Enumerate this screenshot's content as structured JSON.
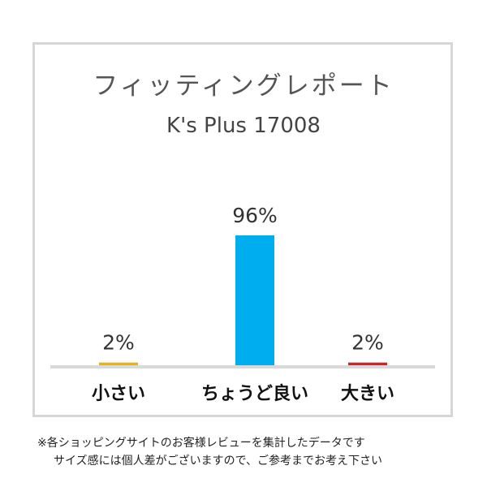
{
  "chart_data": {
    "type": "bar",
    "title": "フィッティングレポート",
    "subtitle": "K's Plus 17008",
    "categories": [
      "小さい",
      "ちょうど良い",
      "大きい"
    ],
    "values": [
      2,
      96,
      2
    ],
    "data_labels": [
      "2%",
      "96%",
      "2%"
    ],
    "colors": [
      "#f0b400",
      "#00aeef",
      "#d82020"
    ],
    "ylim": [
      0,
      100
    ],
    "grid": false,
    "legend": "none"
  },
  "footnotes": {
    "line1": "※各ショッピングサイトのお客様レビューを集計したデータです",
    "line2": "サイズ感には個人差がございますので、ご参考までお考え下さい"
  }
}
